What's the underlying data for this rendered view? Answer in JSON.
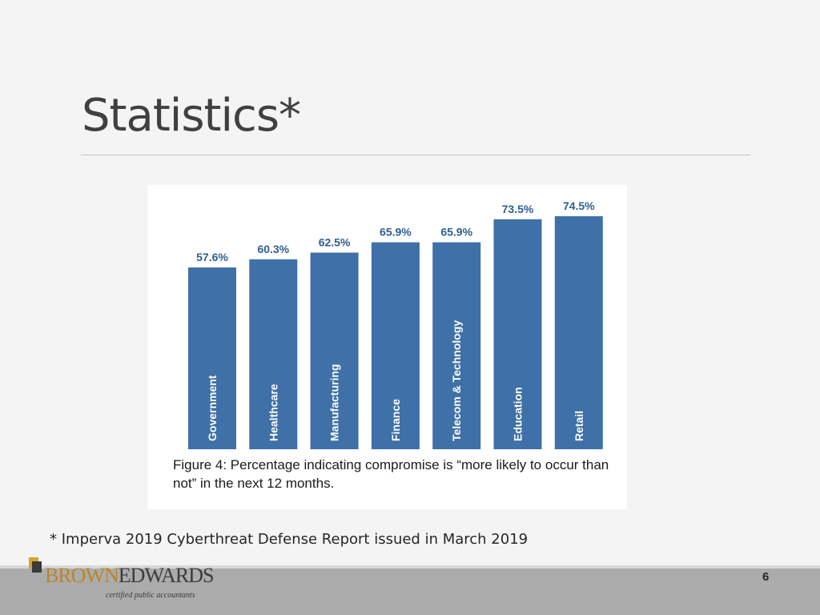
{
  "slide": {
    "title": "Statistics*",
    "footnote": "* Imperva 2019 Cyberthreat Defense Report issued in March 2019",
    "page_number": "6"
  },
  "logo": {
    "brand_part1": "BROWN",
    "brand_part2": "EDWARDS",
    "tagline": "certified public accountants"
  },
  "colors": {
    "bar": "#3f70a8",
    "label": "#2f5e92",
    "category_label": "#ffffff",
    "brand_gold": "#b8862a"
  },
  "chart_data": {
    "type": "bar",
    "categories": [
      "Government",
      "Healthcare",
      "Manufacturing",
      "Finance",
      "Telecom & Technology",
      "Education",
      "Retail"
    ],
    "values": [
      57.6,
      60.3,
      62.5,
      65.9,
      65.9,
      73.5,
      74.5
    ],
    "value_labels": [
      "57.6%",
      "60.3%",
      "62.5%",
      "65.9%",
      "65.9%",
      "73.5%",
      "74.5%"
    ],
    "caption": "Figure 4: Percentage indicating compromise is “more likely to occur than not” in the next 12 months."
  }
}
